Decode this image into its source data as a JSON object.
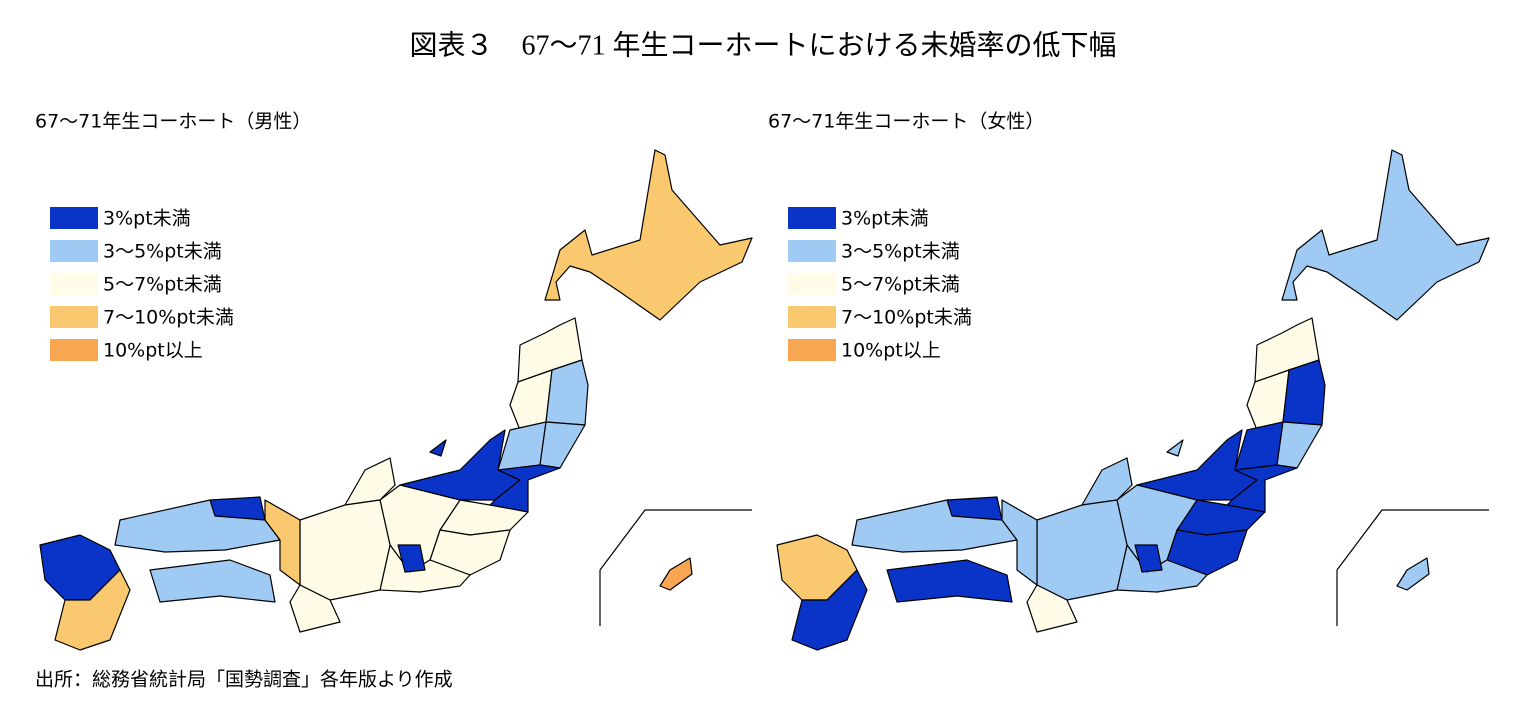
{
  "title": "図表３　67～71 年生コーホートにおける未婚率の低下幅",
  "legend": [
    {
      "label": "3%pt未満",
      "color": "#0a34c8"
    },
    {
      "label": "3～5%pt未満",
      "color": "#9fcaf4"
    },
    {
      "label": "5～7%pt未満",
      "color": "#fffbe6"
    },
    {
      "label": "7～10%pt未満",
      "color": "#fac86e"
    },
    {
      "label": "10%pt以上",
      "color": "#f9a653"
    }
  ],
  "maps": [
    {
      "title": "67～71年生コーホート（男性）",
      "fills": [
        3,
        2,
        2,
        1,
        1,
        1,
        0,
        0,
        2,
        2,
        2,
        2,
        2,
        0,
        2,
        2,
        0,
        1,
        3,
        1,
        0,
        3,
        0,
        4
      ]
    },
    {
      "title": "67～71年生コーホート（女性）",
      "fills": [
        1,
        2,
        2,
        0,
        0,
        1,
        0,
        0,
        0,
        0,
        1,
        1,
        1,
        0,
        1,
        2,
        0,
        1,
        1,
        0,
        3,
        0,
        1,
        1
      ]
    }
  ],
  "source": "出所：総務省統計局「国勢調査」各年版より作成"
}
